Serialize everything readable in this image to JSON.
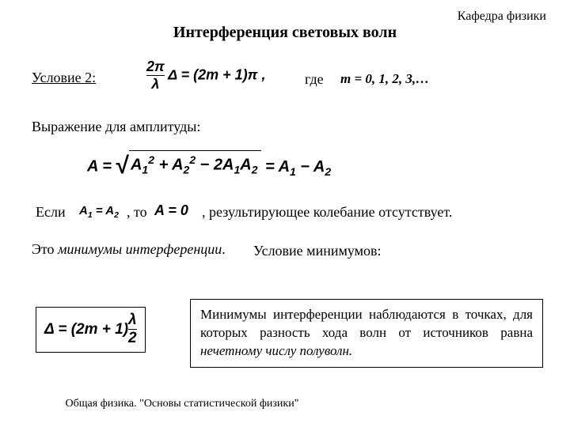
{
  "header": {
    "dept": "Кафедра физики"
  },
  "title": "Интерференция световых волн",
  "condition": {
    "label": "Условие 2:",
    "frac_num": "2π",
    "frac_den": "λ",
    "delta": "Δ = (2m + 1)π ,",
    "where": "где",
    "mvals": "m = 0, 1, 2, 3,…"
  },
  "amplitude": {
    "label": "Выражение для амплитуды:",
    "lhs": "A = ",
    "under_sqrt": "A<sub>1</sub><sup>2</sup> + A<sub>2</sub><sup>2</sup> − 2A<sub>1</sub>A<sub>2</sub>",
    "rhs": " = A<sub>1</sub> − A<sub>2</sub>"
  },
  "ifline": {
    "if": "Если",
    "eq_a": "A<sub>1</sub> = A<sub>2</sub>",
    "to": ", то",
    "eq_b": "A = 0",
    "result": ",   результирующее колебание отсутствует."
  },
  "minima": {
    "text_prefix": "Это ",
    "text_italic": "минимумы интерференции",
    "text_suffix": ".",
    "cond": "Условие минимумов:"
  },
  "formula_box": {
    "lhs": "Δ = (2m + 1)",
    "frac_num": "λ",
    "frac_den": "2"
  },
  "description": {
    "text_prefix": "Минимумы интерференции наблюдаются в точках, для которых разность хода волн от источников равна ",
    "text_italic": "нечетному числу полуволн."
  },
  "footer": "Общая физика. \"Основы статистической физики\"",
  "style": {
    "bg": "#ffffff",
    "text_color": "#000000",
    "border_color": "#000000",
    "font_body": "Times New Roman",
    "font_math": "Arial",
    "title_fontsize": 20,
    "body_fontsize": 18,
    "box_fontsize": 17,
    "footer_fontsize": 14
  }
}
